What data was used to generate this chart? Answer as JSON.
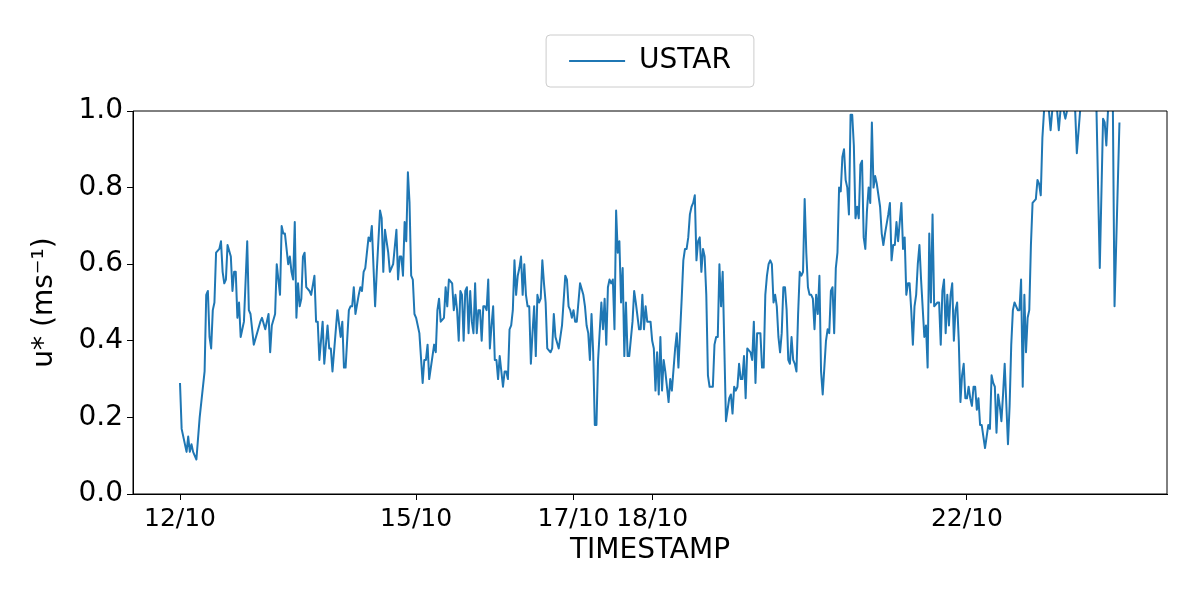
{
  "chart_data": {
    "type": "line",
    "xlabel": "TIMESTAMP",
    "ylabel": "u* (ms⁻¹)",
    "legend": "top",
    "xlim": [
      "--10-11T09:40",
      "--10-24T13:00"
    ],
    "xticks": [
      {
        "value": "--10-12",
        "label": "12/10"
      },
      {
        "value": "--10-15",
        "label": "15/10"
      },
      {
        "value": "--10-17",
        "label": "17/10"
      },
      {
        "value": "--10-18",
        "label": "18/10"
      },
      {
        "value": "--10-22",
        "label": "22/10"
      }
    ],
    "ylim": [
      0,
      1
    ],
    "yticks": [
      {
        "value": 0,
        "label": "0.0"
      },
      0.2,
      0.4,
      0.6,
      0.8,
      {
        "value": 1,
        "label": "1.0"
      }
    ],
    "x": [
      "--10-12T00:00",
      "--10-12T00:30",
      "--10-12T02:00",
      "--10-12T02:30",
      "--10-12T03:00",
      "--10-12T03:30",
      "--10-12T04:00",
      "--10-12T05:00",
      "--10-12T06:00",
      "--10-12T07:30",
      "--10-12T08:00",
      "--10-12T08:30",
      "--10-12T09:00",
      "--10-12T09:30",
      "--10-12T10:00",
      "--10-12T10:30",
      "--10-12T11:00",
      "--10-12T12:00",
      "--10-12T12:30",
      "--10-12T13:00",
      "--10-12T13:30",
      "--10-12T14:00",
      "--10-12T14:30",
      "--10-12T15:30",
      "--10-12T16:00",
      "--10-12T16:30",
      "--10-12T17:00",
      "--10-12T17:30",
      "--10-12T18:00",
      "--10-12T18:30",
      "--10-12T19:30",
      "--10-12T20:30",
      "--10-12T21:00",
      "--10-12T21:30",
      "--10-12T22:30",
      "--10-13T00:30",
      "--10-13T01:00",
      "--10-13T02:00",
      "--10-13T03:00",
      "--10-13T03:30",
      "--10-13T04:00",
      "--10-13T05:00",
      "--10-13T05:30",
      "--10-13T06:30",
      "--10-13T07:00",
      "--10-13T07:30",
      "--10-13T08:00",
      "--10-13T09:00",
      "--10-13T09:30",
      "--10-13T10:00",
      "--10-13T10:30",
      "--10-13T11:00",
      "--10-13T11:30",
      "--10-13T12:00",
      "--10-13T12:30",
      "--10-13T13:00",
      "--10-13T13:30",
      "--10-13T14:00",
      "--10-13T14:30",
      "--10-13T15:30",
      "--10-13T16:00",
      "--10-13T17:00",
      "--10-13T17:30",
      "--10-13T18:00",
      "--10-13T18:30",
      "--10-13T19:30",
      "--10-13T20:00",
      "--10-13T21:00",
      "--10-13T21:30",
      "--10-13T22:00",
      "--10-13T22:30",
      "--10-14T00:00",
      "--10-14T01:00",
      "--10-14T01:30",
      "--10-14T02:00",
      "--10-14T02:30",
      "--10-14T03:30",
      "--10-14T04:00",
      "--10-14T04:30",
      "--10-14T05:00",
      "--10-14T05:30",
      "--10-14T06:30",
      "--10-14T07:00",
      "--10-14T07:30",
      "--10-14T08:00",
      "--10-14T08:30",
      "--10-14T09:30",
      "--10-14T10:00",
      "--10-14T10:30",
      "--10-14T11:30",
      "--10-14T12:00",
      "--10-14T13:00",
      "--10-14T13:30",
      "--10-14T14:00",
      "--10-14T14:30",
      "--10-14T15:30",
      "--10-14T16:00",
      "--10-14T17:00",
      "--10-14T18:00",
      "--10-14T18:30",
      "--10-14T19:00",
      "--10-14T19:30",
      "--10-14T20:00",
      "--10-14T20:30",
      "--10-14T21:00",
      "--10-14T21:30",
      "--10-14T22:00",
      "--10-14T22:30",
      "--10-14T23:00",
      "--10-14T23:30",
      "--10-15T00:00",
      "--10-15T01:00",
      "--10-15T02:00",
      "--10-15T02:30",
      "--10-15T03:00",
      "--10-15T03:30",
      "--10-15T04:00",
      "--10-15T04:30",
      "--10-15T05:30",
      "--10-15T06:00",
      "--10-15T06:30",
      "--10-15T07:00",
      "--10-15T07:30",
      "--10-15T08:30",
      "--10-15T09:00",
      "--10-15T09:30",
      "--10-15T10:00",
      "--10-15T11:00",
      "--10-15T11:30",
      "--10-15T12:00",
      "--10-15T12:30",
      "--10-15T13:00",
      "--10-15T13:30",
      "--10-15T14:00",
      "--10-15T14:30",
      "--10-15T15:00",
      "--10-15T15:30",
      "--10-15T16:00",
      "--10-15T16:30",
      "--10-15T17:00",
      "--10-15T17:30",
      "--10-15T18:00",
      "--10-15T18:30",
      "--10-15T19:00",
      "--10-15T19:30",
      "--10-15T20:00",
      "--10-15T20:30",
      "--10-15T21:00",
      "--10-15T21:30",
      "--10-15T22:00",
      "--10-15T22:30",
      "--10-15T23:00",
      "--10-15T23:30",
      "--10-16T00:00",
      "--10-16T00:30",
      "--10-16T01:00",
      "--10-16T01:30",
      "--10-16T02:00",
      "--10-16T02:30",
      "--10-16T03:00",
      "--10-16T03:30",
      "--10-16T04:00",
      "--10-16T04:30",
      "--10-16T05:00",
      "--10-16T05:30",
      "--10-16T06:00",
      "--10-16T06:30",
      "--10-16T07:00",
      "--10-16T07:30",
      "--10-16T08:00",
      "--10-16T08:30",
      "--10-16T09:00",
      "--10-16T09:30",
      "--10-16T10:00",
      "--10-16T10:30",
      "--10-16T11:00",
      "--10-16T11:30",
      "--10-16T12:00",
      "--10-16T12:30",
      "--10-16T13:00",
      "--10-16T13:30",
      "--10-16T14:00",
      "--10-16T14:30",
      "--10-16T15:00",
      "--10-16T15:30",
      "--10-16T16:00",
      "--10-16T17:00",
      "--10-16T17:30",
      "--10-16T18:00",
      "--10-16T18:30",
      "--10-16T19:30",
      "--10-16T20:30",
      "--10-16T21:30",
      "--10-16T22:00",
      "--10-16T22:30",
      "--10-16T23:00",
      "--10-16T23:30",
      "--10-17T00:00",
      "--10-17T00:30",
      "--10-17T01:00",
      "--10-17T01:30",
      "--10-17T02:00",
      "--10-17T03:00",
      "--10-17T03:30",
      "--10-17T04:00",
      "--10-17T04:30",
      "--10-17T05:00",
      "--10-17T05:30",
      "--10-17T06:00",
      "--10-17T06:30",
      "--10-17T07:00",
      "--10-17T07:30",
      "--10-17T08:30",
      "--10-17T09:00",
      "--10-17T09:30",
      "--10-17T10:00",
      "--10-17T10:30",
      "--10-17T11:00",
      "--10-17T11:30",
      "--10-17T12:00",
      "--10-17T12:30",
      "--10-17T13:00",
      "--10-17T13:30",
      "--10-17T14:00",
      "--10-17T14:30",
      "--10-17T15:00",
      "--10-17T15:30",
      "--10-17T16:00",
      "--10-17T16:30",
      "--10-17T17:00",
      "--10-17T18:00",
      "--10-17T18:30",
      "--10-17T19:00",
      "--10-17T20:00",
      "--10-17T20:30",
      "--10-17T21:00",
      "--10-17T21:30",
      "--10-17T22:00",
      "--10-17T22:30",
      "--10-17T23:30",
      "--10-18T00:00",
      "--10-18T00:30",
      "--10-18T01:00",
      "--10-18T01:30",
      "--10-18T02:00",
      "--10-18T02:30",
      "--10-18T03:00",
      "--10-18T03:30",
      "--10-18T04:00",
      "--10-18T04:30",
      "--10-18T05:00",
      "--10-18T05:30",
      "--10-18T06:00",
      "--10-18T07:00",
      "--10-18T07:30",
      "--10-18T08:00",
      "--10-18T08:30",
      "--10-18T09:00",
      "--10-18T09:30",
      "--10-18T10:00",
      "--10-18T10:30",
      "--10-18T11:00",
      "--10-18T11:30",
      "--10-18T12:00",
      "--10-18T12:30",
      "--10-18T13:00",
      "--10-18T13:30",
      "--10-18T14:00",
      "--10-18T14:30",
      "--10-18T15:00",
      "--10-18T15:30",
      "--10-18T16:00",
      "--10-18T16:30",
      "--10-18T17:00",
      "--10-18T17:30",
      "--10-18T18:30",
      "--10-18T19:00",
      "--10-18T19:30",
      "--10-18T20:00",
      "--10-18T20:30",
      "--10-18T21:00",
      "--10-18T21:30",
      "--10-18T22:30",
      "--10-18T23:30",
      "--10-19T00:00",
      "--10-19T00:30",
      "--10-19T01:00",
      "--10-19T01:30",
      "--10-19T02:00",
      "--10-19T02:30",
      "--10-19T03:00",
      "--10-19T03:30",
      "--10-19T04:00",
      "--10-19T04:30",
      "--10-19T05:00",
      "--10-19T06:00",
      "--10-19T06:30",
      "--10-19T07:00",
      "--10-19T07:30",
      "--10-19T08:00",
      "--10-19T08:30",
      "--10-19T09:00",
      "--10-19T09:30",
      "--10-19T10:00",
      "--10-19T10:30",
      "--10-19T11:00",
      "--10-19T11:30",
      "--10-19T12:00",
      "--10-19T12:30",
      "--10-19T13:00",
      "--10-19T13:30",
      "--10-19T14:00",
      "--10-19T14:30",
      "--10-19T15:00",
      "--10-19T15:30",
      "--10-19T16:00",
      "--10-19T16:30",
      "--10-19T17:00",
      "--10-19T17:30",
      "--10-19T18:00",
      "--10-19T18:30",
      "--10-19T19:00",
      "--10-19T19:30",
      "--10-19T20:00",
      "--10-19T20:30",
      "--10-19T21:00",
      "--10-19T21:30",
      "--10-19T22:00",
      "--10-19T22:30",
      "--10-19T23:00",
      "--10-19T23:30",
      "--10-20T00:00",
      "--10-20T00:30",
      "--10-20T01:00",
      "--10-20T01:30",
      "--10-20T02:00",
      "--10-20T02:30",
      "--10-20T03:00",
      "--10-20T03:30",
      "--10-20T04:00",
      "--10-20T04:30",
      "--10-20T05:00",
      "--10-20T05:30",
      "--10-20T06:00",
      "--10-20T06:30",
      "--10-20T07:00",
      "--10-20T07:30",
      "--10-20T08:00",
      "--10-20T08:30",
      "--10-20T09:00",
      "--10-20T09:30",
      "--10-20T10:00",
      "--10-20T10:30",
      "--10-20T11:00",
      "--10-20T11:30",
      "--10-20T12:00",
      "--10-20T12:30",
      "--10-20T13:00",
      "--10-20T13:30",
      "--10-20T14:00",
      "--10-20T14:30",
      "--10-20T15:00",
      "--10-20T15:30",
      "--10-20T16:00",
      "--10-20T16:30",
      "--10-20T17:00",
      "--10-20T17:30",
      "--10-20T18:00",
      "--10-20T18:30",
      "--10-20T19:00",
      "--10-20T19:30",
      "--10-20T20:00",
      "--10-20T20:30",
      "--10-20T21:30",
      "--10-20T22:00",
      "--10-20T22:30",
      "--10-20T23:00",
      "--10-21T00:00",
      "--10-21T00:30",
      "--10-21T01:00",
      "--10-21T01:30",
      "--10-21T02:00",
      "--10-21T02:30",
      "--10-21T03:00",
      "--10-21T04:00",
      "--10-21T04:30",
      "--10-21T05:00",
      "--10-21T05:30",
      "--10-21T06:00",
      "--10-21T06:30",
      "--10-21T07:00",
      "--10-21T07:30",
      "--10-21T08:00",
      "--10-21T08:30",
      "--10-21T09:00",
      "--10-21T09:30",
      "--10-21T10:00",
      "--10-21T11:00",
      "--10-21T11:30",
      "--10-21T12:00",
      "--10-21T12:30",
      "--10-21T13:00",
      "--10-21T13:30",
      "--10-21T14:00",
      "--10-21T15:00",
      "--10-21T15:30",
      "--10-21T16:00",
      "--10-21T16:30",
      "--10-21T17:00",
      "--10-21T17:30",
      "--10-21T18:00",
      "--10-21T18:30",
      "--10-21T19:00",
      "--10-21T19:30",
      "--10-21T20:00",
      "--10-21T20:30",
      "--10-21T21:00",
      "--10-21T21:30",
      "--10-21T22:00",
      "--10-21T22:30",
      "--10-21T23:00",
      "--10-21T23:30",
      "--10-22T00:00",
      "--10-22T00:30",
      "--10-22T01:00",
      "--10-22T01:30",
      "--10-22T02:00",
      "--10-22T02:30",
      "--10-22T03:00",
      "--10-22T03:30",
      "--10-22T04:00",
      "--10-22T04:30",
      "--10-22T05:00",
      "--10-22T05:30",
      "--10-22T06:00",
      "--10-22T06:30",
      "--10-22T07:00",
      "--10-22T07:30",
      "--10-22T08:00",
      "--10-22T08:30",
      "--10-22T09:00",
      "--10-22T09:30",
      "--10-22T10:00",
      "--10-22T10:30",
      "--10-22T11:00",
      "--10-22T11:30",
      "--10-22T12:30",
      "--10-22T13:00",
      "--10-22T13:30",
      "--10-22T14:00",
      "--10-22T14:30",
      "--10-22T15:00",
      "--10-22T15:30",
      "--10-22T16:00",
      "--10-22T16:30",
      "--10-22T17:00",
      "--10-22T17:30",
      "--10-22T18:00",
      "--10-22T18:30",
      "--10-22T19:00",
      "--10-22T19:30",
      "--10-22T20:00",
      "--10-22T21:00",
      "--10-22T21:30",
      "--10-22T22:00",
      "--10-22T22:30",
      "--10-22T23:00",
      "--10-22T23:30",
      "--10-23T00:00",
      "--10-23T01:00",
      "--10-23T01:30",
      "--10-23T02:00",
      "--10-23T02:30",
      "--10-23T03:30",
      "--10-23T04:00",
      "--10-23T04:30",
      "--10-23T05:00",
      "--10-23T05:30",
      "--10-23T06:00",
      "--10-23T06:30",
      "--10-23T07:00",
      "--10-23T09:00",
      "--10-23T09:30",
      "--10-23T10:30",
      "--10-23T11:00",
      "--10-23T15:30",
      "--10-23T16:30",
      "--10-23T17:30",
      "--10-23T18:00",
      "--10-23T18:30",
      "--10-23T19:00",
      "--10-23T19:30",
      "--10-23T20:30",
      "--10-23T21:00",
      "--10-23T22:30"
    ],
    "series": [
      {
        "name": "USTAR",
        "color": "#1f77b4",
        "values": [
          0.29,
          0.17,
          0.11,
          0.15,
          0.11,
          0.13,
          0.11,
          0.09,
          0.2,
          0.32,
          0.52,
          0.53,
          0.41,
          0.38,
          0.48,
          0.5,
          0.63,
          0.64,
          0.66,
          0.58,
          0.55,
          0.56,
          0.65,
          0.62,
          0.53,
          0.58,
          0.58,
          0.46,
          0.5,
          0.41,
          0.45,
          0.66,
          0.48,
          0.47,
          0.39,
          0.45,
          0.46,
          0.43,
          0.47,
          0.37,
          0.44,
          0.47,
          0.6,
          0.52,
          0.7,
          0.68,
          0.68,
          0.6,
          0.62,
          0.58,
          0.56,
          0.71,
          0.46,
          0.55,
          0.49,
          0.51,
          0.62,
          0.63,
          0.54,
          0.53,
          0.52,
          0.57,
          0.45,
          0.45,
          0.35,
          0.45,
          0.34,
          0.44,
          0.38,
          0.38,
          0.32,
          0.48,
          0.41,
          0.45,
          0.33,
          0.33,
          0.48,
          0.49,
          0.49,
          0.54,
          0.47,
          0.52,
          0.54,
          0.53,
          0.58,
          0.59,
          0.67,
          0.66,
          0.7,
          0.49,
          0.58,
          0.74,
          0.72,
          0.58,
          0.69,
          0.63,
          0.58,
          0.6,
          0.69,
          0.56,
          0.62,
          0.62,
          0.57,
          0.71,
          0.66,
          0.84,
          0.76,
          0.57,
          0.56,
          0.47,
          0.46,
          0.42,
          0.29,
          0.35,
          0.35,
          0.39,
          0.3,
          0.33,
          0.39,
          0.37,
          0.48,
          0.51,
          0.45,
          0.46,
          0.54,
          0.49,
          0.56,
          0.55,
          0.48,
          0.52,
          0.48,
          0.4,
          0.53,
          0.52,
          0.4,
          0.53,
          0.54,
          0.42,
          0.53,
          0.45,
          0.42,
          0.55,
          0.42,
          0.48,
          0.48,
          0.4,
          0.49,
          0.49,
          0.48,
          0.56,
          0.38,
          0.44,
          0.49,
          0.35,
          0.35,
          0.3,
          0.36,
          0.32,
          0.28,
          0.32,
          0.32,
          0.3,
          0.43,
          0.44,
          0.48,
          0.61,
          0.52,
          0.57,
          0.59,
          0.62,
          0.52,
          0.6,
          0.52,
          0.49,
          0.49,
          0.34,
          0.42,
          0.49,
          0.36,
          0.52,
          0.5,
          0.51,
          0.61,
          0.55,
          0.5,
          0.38,
          0.37,
          0.38,
          0.47,
          0.41,
          0.38,
          0.44,
          0.57,
          0.56,
          0.49,
          0.48,
          0.46,
          0.48,
          0.45,
          0.45,
          0.5,
          0.55,
          0.52,
          0.49,
          0.44,
          0.42,
          0.35,
          0.47,
          0.37,
          0.18,
          0.18,
          0.35,
          0.5,
          0.43,
          0.51,
          0.39,
          0.54,
          0.56,
          0.55,
          0.56,
          0.43,
          0.74,
          0.63,
          0.66,
          0.5,
          0.59,
          0.36,
          0.5,
          0.36,
          0.36,
          0.45,
          0.53,
          0.5,
          0.43,
          0.43,
          0.52,
          0.43,
          0.49,
          0.45,
          0.45,
          0.4,
          0.38,
          0.27,
          0.37,
          0.26,
          0.41,
          0.27,
          0.35,
          0.32,
          0.28,
          0.24,
          0.3,
          0.27,
          0.38,
          0.42,
          0.33,
          0.42,
          0.51,
          0.61,
          0.64,
          0.64,
          0.67,
          0.73,
          0.75,
          0.76,
          0.78,
          0.61,
          0.66,
          0.67,
          0.58,
          0.64,
          0.62,
          0.52,
          0.31,
          0.28,
          0.28,
          0.39,
          0.41,
          0.41,
          0.6,
          0.49,
          0.58,
          0.19,
          0.25,
          0.26,
          0.21,
          0.28,
          0.27,
          0.28,
          0.34,
          0.3,
          0.3,
          0.36,
          0.25,
          0.38,
          0.37,
          0.35,
          0.45,
          0.29,
          0.42,
          0.42,
          0.42,
          0.33,
          0.33,
          0.52,
          0.57,
          0.6,
          0.61,
          0.6,
          0.5,
          0.52,
          0.49,
          0.41,
          0.37,
          0.42,
          0.54,
          0.54,
          0.48,
          0.35,
          0.34,
          0.41,
          0.35,
          0.34,
          0.32,
          0.47,
          0.58,
          0.57,
          0.58,
          0.77,
          0.63,
          0.54,
          0.52,
          0.52,
          0.51,
          0.43,
          0.52,
          0.47,
          0.57,
          0.32,
          0.26,
          0.33,
          0.4,
          0.43,
          0.42,
          0.53,
          0.54,
          0.42,
          0.59,
          0.63,
          0.8,
          0.79,
          0.88,
          0.9,
          0.82,
          0.8,
          0.73,
          0.99,
          0.99,
          0.91,
          0.72,
          0.75,
          0.72,
          0.86,
          0.87,
          0.67,
          0.64,
          0.74,
          0.8,
          0.76,
          0.97,
          0.8,
          0.83,
          0.81,
          0.75,
          0.68,
          0.65,
          0.68,
          0.73,
          0.76,
          0.61,
          0.65,
          0.65,
          0.71,
          0.66,
          0.76,
          0.64,
          0.67,
          0.52,
          0.55,
          0.55,
          0.48,
          0.39,
          0.49,
          0.52,
          0.6,
          0.65,
          0.56,
          0.41,
          0.44,
          0.33,
          0.68,
          0.5,
          0.73,
          0.49,
          0.5,
          0.5,
          0.39,
          0.53,
          0.56,
          0.42,
          0.52,
          0.44,
          0.52,
          0.55,
          0.4,
          0.48,
          0.5,
          0.4,
          0.24,
          0.31,
          0.34,
          0.25,
          0.25,
          0.28,
          0.25,
          0.23,
          0.28,
          0.28,
          0.22,
          0.25,
          0.18,
          0.18,
          0.15,
          0.12,
          0.15,
          0.18,
          0.17,
          0.31,
          0.29,
          0.28,
          0.16,
          0.26,
          0.23,
          0.19,
          0.26,
          0.34,
          0.13,
          0.23,
          0.39,
          0.48,
          0.5,
          0.49,
          0.48,
          0.48,
          0.56,
          0.28,
          0.52,
          0.37,
          0.46,
          0.48,
          0.65,
          0.76,
          0.77,
          0.82,
          0.81,
          0.78,
          0.93,
          1.0,
          null,
          1.0,
          0.95,
          1.0,
          null,
          1.0,
          0.95,
          1.0,
          null,
          1.0,
          0.98,
          1.0,
          null,
          1.0,
          0.89,
          1.0,
          null,
          1.0,
          0.59,
          0.98,
          0.97,
          0.91,
          1.0,
          null,
          1.0,
          0.49,
          0.97
        ]
      }
    ]
  }
}
